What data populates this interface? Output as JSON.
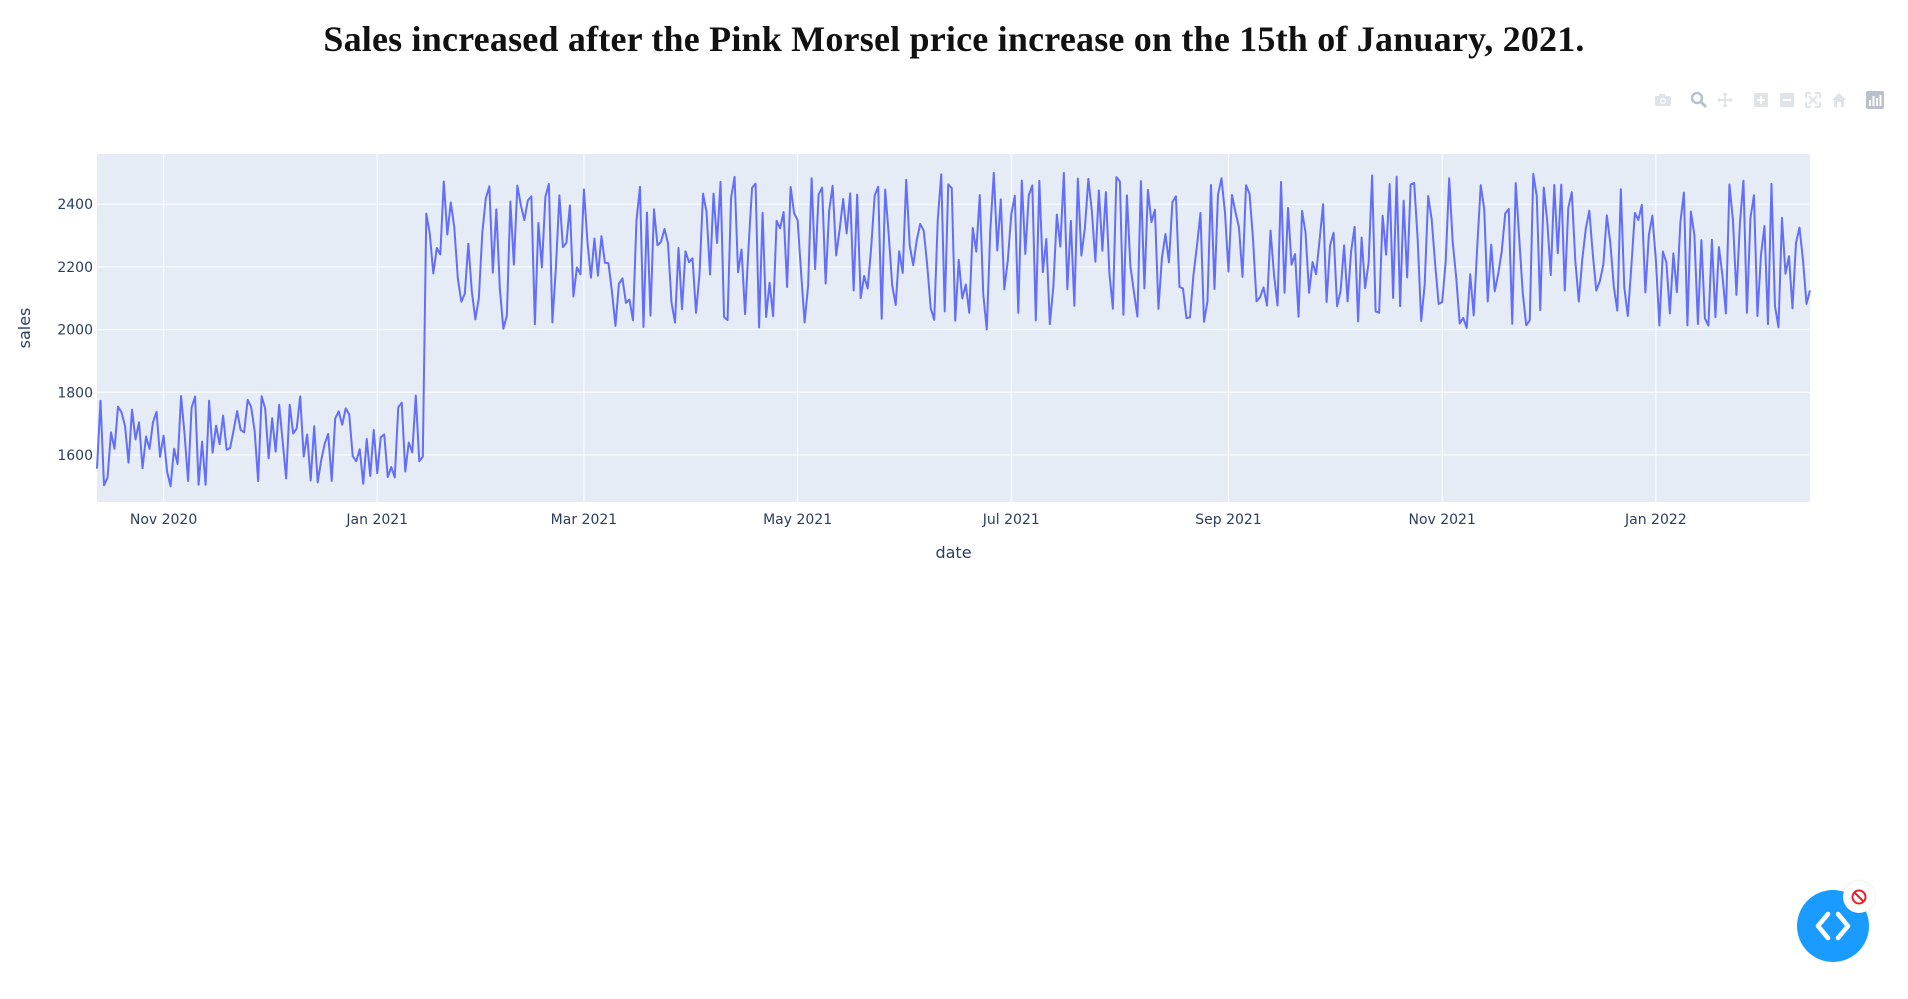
{
  "title": "Sales increased after the Pink Morsel price increase on the 15th of January, 2021.",
  "modebar": {
    "buttons": [
      "camera-icon",
      "zoom-icon",
      "pan-icon",
      "zoom-in-icon",
      "zoom-out-icon",
      "autoscale-icon",
      "reset-axes-icon",
      "plotly-logo-icon"
    ]
  },
  "colors": {
    "line": "#636efa",
    "plot_bg": "#e5ecf6",
    "grid": "#ffffff",
    "tick_text": "#2a3f5f",
    "modebar_icon": "#dfe3ea",
    "fab": "#1a9bff",
    "badge_red": "#e8202a"
  },
  "fab": {
    "icon": "code-brackets-icon",
    "badge_icon": "no-entry-icon"
  },
  "chart_data": {
    "type": "line",
    "xlabel": "date",
    "ylabel": "sales",
    "xlim": [
      "2020-10-13",
      "2022-02-14"
    ],
    "ylim": [
      1450,
      2560
    ],
    "x_ticks": [
      {
        "date": "2020-11-01",
        "label": "Nov 2020"
      },
      {
        "date": "2021-01-01",
        "label": "Jan 2021"
      },
      {
        "date": "2021-03-01",
        "label": "Mar 2021"
      },
      {
        "date": "2021-05-01",
        "label": "May 2021"
      },
      {
        "date": "2021-07-01",
        "label": "Jul 2021"
      },
      {
        "date": "2021-09-01",
        "label": "Sep 2021"
      },
      {
        "date": "2021-11-01",
        "label": "Nov 2021"
      },
      {
        "date": "2022-01-01",
        "label": "Jan 2022"
      }
    ],
    "y_ticks": [
      1600,
      1800,
      2000,
      2200,
      2400
    ],
    "grid": true,
    "legend": "none",
    "series": [
      {
        "segments": [
          {
            "start": "2020-10-13",
            "end": "2021-01-14",
            "min": 1500,
            "max": 1790
          },
          {
            "start": "2021-01-15",
            "end": "2022-02-14",
            "min": 2000,
            "max": 2500
          }
        ],
        "note": ""
      }
    ]
  }
}
